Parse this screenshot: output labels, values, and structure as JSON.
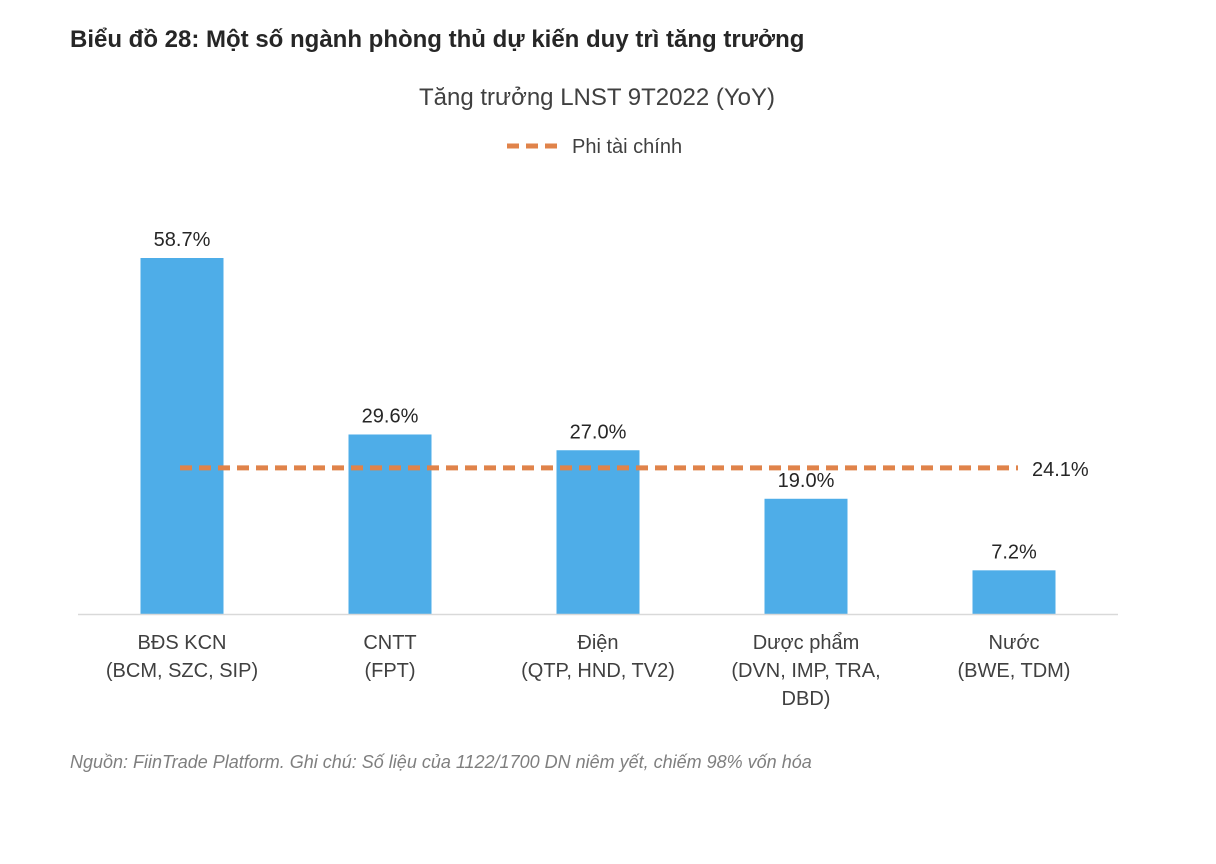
{
  "figure_title": "Biểu đồ 28: Một số ngành phòng thủ dự kiến duy trì tăng trưởng",
  "source_note": "Nguồn: FiinTrade Platform. Ghi chú: Số liệu của 1122/1700 DN niêm yết, chiếm 98% vốn hóa",
  "colors": {
    "bar": "#4EADE8",
    "reference": "#E0834A",
    "axis": "#D9D9D9"
  },
  "chart_data": {
    "type": "bar",
    "title": "Tăng trưởng LNST 9T2022 (YoY)",
    "categories": [
      [
        "BĐS KCN",
        "(BCM, SZC, SIP)"
      ],
      [
        "CNTT",
        "(FPT)"
      ],
      [
        "Điện",
        "(QTP, HND, TV2)"
      ],
      [
        "Dược phẩm",
        "(DVN, IMP, TRA,",
        "DBD)"
      ],
      [
        "Nước",
        "(BWE, TDM)"
      ]
    ],
    "values": [
      58.7,
      29.6,
      27.0,
      19.0,
      7.2
    ],
    "data_labels": [
      "58.7%",
      "29.6%",
      "27.0%",
      "19.0%",
      "7.2%"
    ],
    "reference_line": {
      "name": "Phi tài chính",
      "value": 24.1,
      "label": "24.1%",
      "style": "dashed"
    },
    "legend": {
      "position": "top",
      "entries": [
        "Phi tài chính"
      ]
    },
    "ylim": [
      0,
      65
    ],
    "grid": false,
    "xlabel": "",
    "ylabel": ""
  }
}
